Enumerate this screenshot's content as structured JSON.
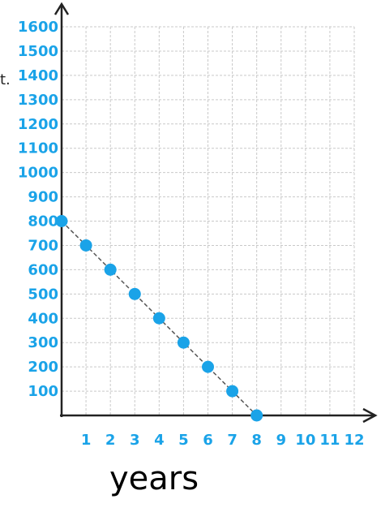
{
  "chart_data": {
    "type": "scatter",
    "title": "",
    "xlabel": "years",
    "ylabel": "",
    "xlim": [
      0,
      12
    ],
    "ylim": [
      0,
      1600
    ],
    "grid": true,
    "x_ticks": [
      "1",
      "2",
      "3",
      "4",
      "5",
      "6",
      "7",
      "8",
      "9",
      "10",
      "11",
      "12"
    ],
    "y_ticks": [
      "100",
      "200",
      "300",
      "400",
      "500",
      "600",
      "700",
      "800",
      "900",
      "1000",
      "1100",
      "1200",
      "1300",
      "1400",
      "1500",
      "1600"
    ],
    "points": [
      {
        "x": 0,
        "y": 800
      },
      {
        "x": 1,
        "y": 700
      },
      {
        "x": 2,
        "y": 600
      },
      {
        "x": 3,
        "y": 500
      },
      {
        "x": 4,
        "y": 400
      },
      {
        "x": 5,
        "y": 300
      },
      {
        "x": 6,
        "y": 200
      },
      {
        "x": 7,
        "y": 100
      },
      {
        "x": 8,
        "y": 0
      }
    ],
    "trend_line": {
      "from": {
        "x": 0,
        "y": 800
      },
      "to": {
        "x": 8,
        "y": 0
      }
    },
    "edge_fragment": "t.",
    "ink_color": "#1aa3e8",
    "axis_color": "#222222",
    "grid_color": "#c9c9c9"
  }
}
